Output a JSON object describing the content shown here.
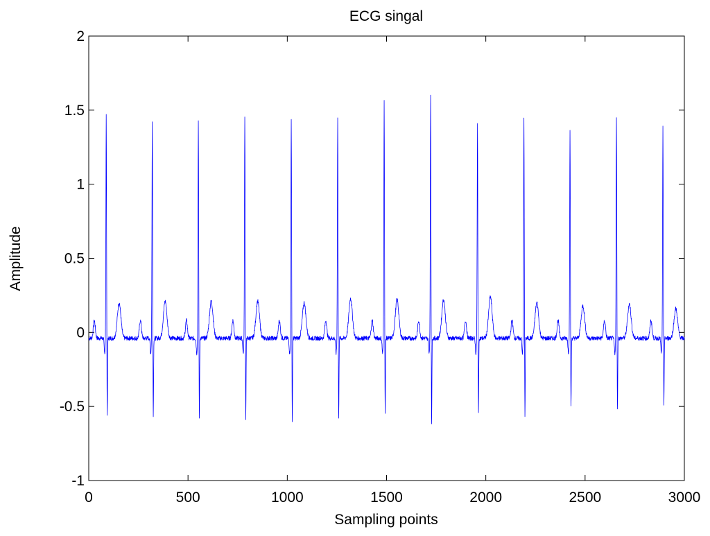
{
  "chart_data": {
    "type": "line",
    "title": "ECG singal",
    "xlabel": "Sampling points",
    "ylabel": "Amplitude",
    "xlim": [
      0,
      3000
    ],
    "ylim": [
      -1,
      2
    ],
    "xticks": [
      0,
      500,
      1000,
      1500,
      2000,
      2500,
      3000
    ],
    "xtick_labels": [
      "0",
      "500",
      "1000",
      "1500",
      "2000",
      "2500",
      "3000"
    ],
    "yticks": [
      -1,
      -0.5,
      0,
      0.5,
      1,
      1.5,
      2
    ],
    "ytick_labels": [
      "-1",
      "-0.5",
      "0",
      "0.5",
      "1",
      "1.5",
      "2"
    ],
    "grid": false,
    "legend": "none",
    "line_color": "#0000ff",
    "baseline_level": -0.04,
    "series": [
      {
        "beats": [
          {
            "r_peak_x": 88,
            "r_amplitude": 1.43,
            "s_amplitude": -0.57,
            "t_amplitude": 0.22
          },
          {
            "r_peak_x": 320,
            "r_amplitude": 1.37,
            "s_amplitude": -0.58,
            "t_amplitude": 0.23
          },
          {
            "r_peak_x": 552,
            "r_amplitude": 1.37,
            "s_amplitude": -0.58,
            "t_amplitude": 0.23
          },
          {
            "r_peak_x": 786,
            "r_amplitude": 1.42,
            "s_amplitude": -0.59,
            "t_amplitude": 0.23
          },
          {
            "r_peak_x": 1020,
            "r_amplitude": 1.4,
            "s_amplitude": -0.6,
            "t_amplitude": 0.22
          },
          {
            "r_peak_x": 1254,
            "r_amplitude": 1.41,
            "s_amplitude": -0.6,
            "t_amplitude": 0.25
          },
          {
            "r_peak_x": 1488,
            "r_amplitude": 1.53,
            "s_amplitude": -0.56,
            "t_amplitude": 0.24
          },
          {
            "r_peak_x": 1722,
            "r_amplitude": 1.54,
            "s_amplitude": -0.62,
            "t_amplitude": 0.24
          },
          {
            "r_peak_x": 1958,
            "r_amplitude": 1.36,
            "s_amplitude": -0.54,
            "t_amplitude": 0.26
          },
          {
            "r_peak_x": 2192,
            "r_amplitude": 1.39,
            "s_amplitude": -0.58,
            "t_amplitude": 0.22
          },
          {
            "r_peak_x": 2424,
            "r_amplitude": 1.33,
            "s_amplitude": -0.51,
            "t_amplitude": 0.2
          },
          {
            "r_peak_x": 2658,
            "r_amplitude": 1.4,
            "s_amplitude": -0.54,
            "t_amplitude": 0.21
          },
          {
            "r_peak_x": 2892,
            "r_amplitude": 1.33,
            "s_amplitude": -0.49,
            "t_amplitude": 0.18
          }
        ]
      }
    ]
  }
}
